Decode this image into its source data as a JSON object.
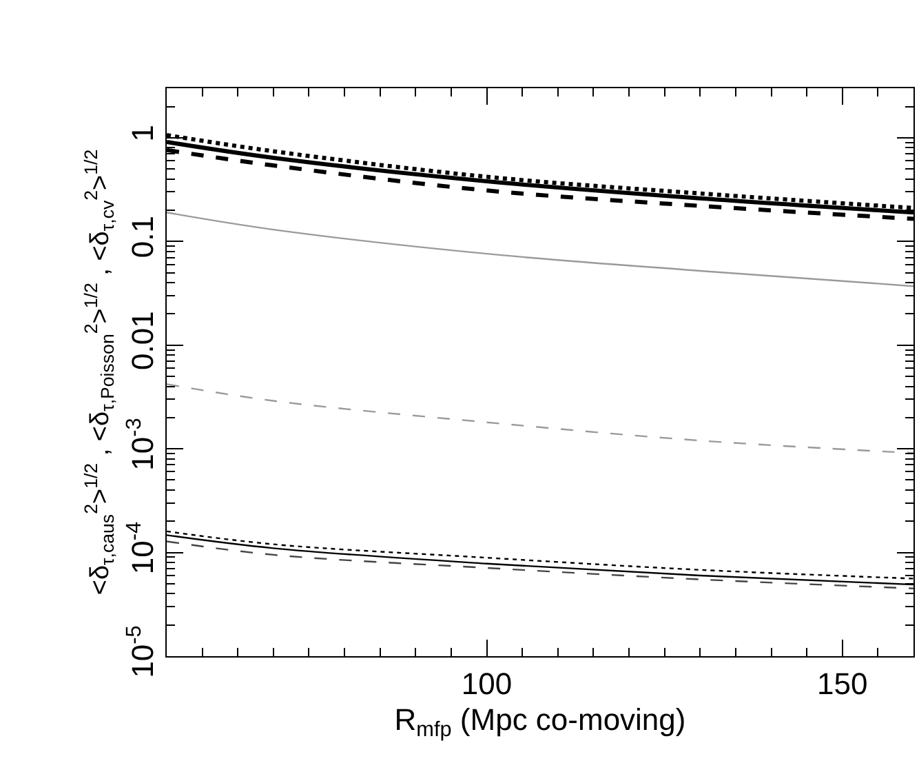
{
  "chart_data": {
    "type": "line",
    "xlabel": "R$_{mfp}$ (Mpc co-moving)",
    "ylabel": "<δ$_{τ,caus}$$^{2}$>$^{1/2}$ , <δ$_{τ,Poisson}$$^{2}$>$^{1/2}$ , <δ$_{τ,cv}$$^{2}$>$^{1/2}$",
    "x": [
      55,
      70,
      100,
      130,
      160
    ],
    "series": [
      {
        "color": "#000000",
        "line_style": "solid",
        "values": [
          0.91,
          0.64,
          0.38,
          0.26,
          0.19
        ]
      },
      {
        "color": "#000000",
        "line_style": "dotted",
        "values": [
          1.06,
          0.74,
          0.42,
          0.29,
          0.21
        ]
      },
      {
        "color": "#000000",
        "line_style": "dashed",
        "values": [
          0.76,
          0.54,
          0.31,
          0.22,
          0.165
        ]
      },
      {
        "color": "#9a9a9a",
        "line_style": "solid",
        "values": [
          0.19,
          0.13,
          0.076,
          0.052,
          0.037
        ]
      },
      {
        "color": "#9a9a9a",
        "line_style": "dashed",
        "values": [
          0.0042,
          0.0029,
          0.0018,
          0.0012,
          0.00091
        ]
      },
      {
        "color": "#000000",
        "line_style": "solid",
        "values": [
          0.000147,
          0.00011,
          7.8e-05,
          6e-05,
          4.9e-05
        ]
      },
      {
        "color": "#000000",
        "line_style": "dotted",
        "values": [
          0.00016,
          0.00012,
          8.9e-05,
          6.8e-05,
          5.6e-05
        ]
      },
      {
        "color": "#444444",
        "line_style": "dashed",
        "values": [
          0.000128,
          9.5e-05,
          7.1e-05,
          5.5e-05,
          4.5e-05
        ]
      }
    ],
    "log": "y",
    "xlim": [
      55,
      160
    ],
    "xticks": [
      100,
      150
    ],
    "ylim": [
      1e-05,
      3
    ],
    "yticks": [
      1,
      0.1,
      0.01,
      {
        "value": 0.001,
        "label": "10$^{-3}$"
      },
      {
        "value": 0.0001,
        "label": "10$^{-4}$"
      },
      {
        "value": 1e-05,
        "label": "10$^{-5}$"
      }
    ],
    "marker": "none"
  }
}
